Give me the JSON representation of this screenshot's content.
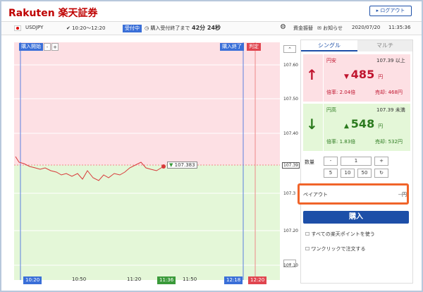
{
  "header": {
    "logo": "Rakuten",
    "logo_jp": "楽天証券",
    "logout": "ログアウト"
  },
  "toolbar": {
    "pair": "USDJPY",
    "session": "10:20～12:20",
    "status": "受付中",
    "countdown_label": "購入受付終了まで",
    "countdown": "42分 24秒",
    "transfer": "資金振替",
    "notice": "お知らせ",
    "date": "2020/07/20",
    "time": "11:35:36"
  },
  "chart": {
    "start_label": "購入開始",
    "end_label": "購入終了",
    "judge_label": "判定",
    "price_label": "107.383",
    "y_labels": [
      "107.60",
      "107.50",
      "107.40",
      "107.39",
      "107.3",
      "107.20",
      "107.10"
    ],
    "x_labels": [
      "10:20",
      "10:50",
      "11:20",
      "11:36",
      "11:50",
      "12:18",
      "12:20"
    ]
  },
  "panel": {
    "tabs": [
      "シングル",
      "マルチ"
    ],
    "up": {
      "label": "円安",
      "strike": "107.39 以上",
      "price": "485",
      "unit": "円",
      "rate": "倍率: 2.04倍",
      "sell": "売却: 468円"
    },
    "down": {
      "label": "円高",
      "strike": "107.39 未満",
      "price": "548",
      "unit": "円",
      "rate": "倍率: 1.83倍",
      "sell": "売却: 532円"
    },
    "qty_label": "数量",
    "minus": "-",
    "qty": "1",
    "plus": "+",
    "quick": [
      "5",
      "10",
      "50"
    ],
    "payout_label": "ペイアウト",
    "payout": "--円",
    "buy": "購入",
    "options": [
      "すべての楽天ポイントを使う",
      "ワンクリックで注文する"
    ]
  }
}
